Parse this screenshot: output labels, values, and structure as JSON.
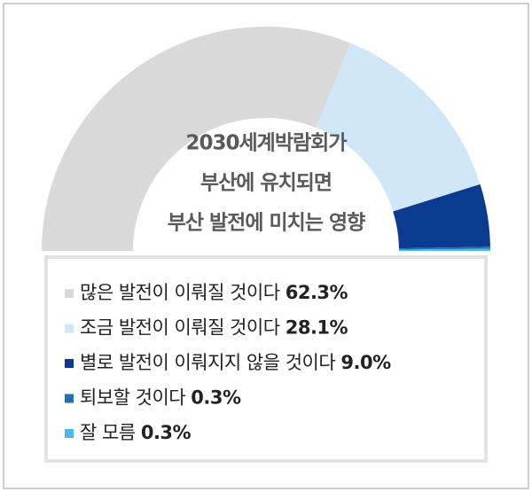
{
  "chart_data": {
    "type": "pie",
    "half": true,
    "title_lines": [
      "2030세계박람회가",
      "부산에 유치되면",
      "부산 발전에 미치는 영향"
    ],
    "categories": [
      "많은 발전이 이뤄질 것이다",
      "조금 발전이 이뤄질 것이다",
      "별로 발전이 이뤄지지 않을 것이다",
      "퇴보할 것이다",
      "잘 모름"
    ],
    "values": [
      62.3,
      28.1,
      9.0,
      0.3,
      0.3
    ],
    "value_labels": [
      "62.3%",
      "28.1%",
      "9.0%",
      "0.3%",
      "0.3%"
    ],
    "colors": [
      "#d9d9d9",
      "#d0e7f8",
      "#0b3b8f",
      "#1f6fb8",
      "#4cb8ea"
    ]
  }
}
